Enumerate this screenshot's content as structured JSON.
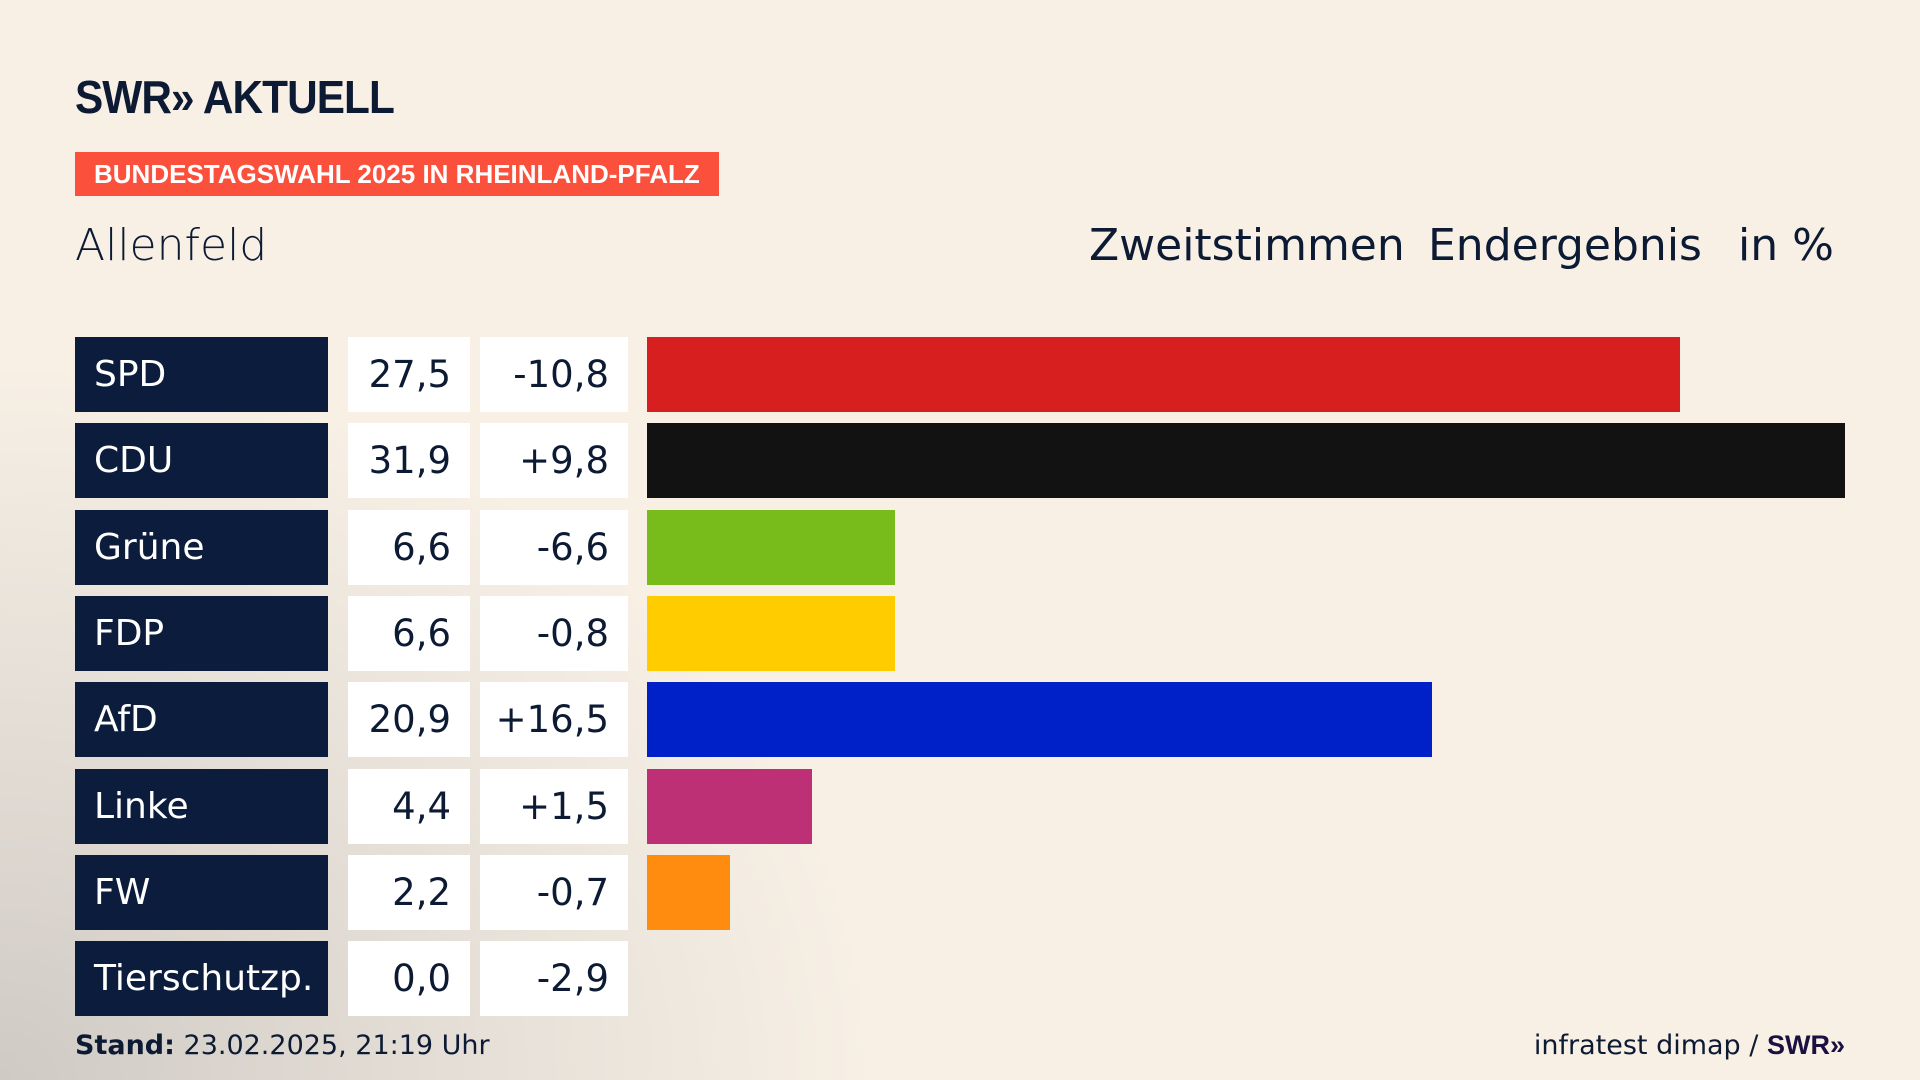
{
  "header": {
    "logo": "SWR» AKTUELL",
    "badge": "BUNDESTAGSWAHL 2025 IN RHEINLAND-PFALZ",
    "place": "Allenfeld",
    "vote_type": "Zweitstimmen",
    "status": "Endergebnis",
    "unit": "in %"
  },
  "footer": {
    "stand_label": "Stand:",
    "stand_value": "23.02.2025, 21:19 Uhr",
    "source": "infratest dimap /",
    "source_logo": "SWR»"
  },
  "chart_data": {
    "type": "bar",
    "title": "Zweitstimmen Endergebnis in %",
    "categories": [
      "SPD",
      "CDU",
      "Grüne",
      "FDP",
      "AfD",
      "Linke",
      "FW",
      "Tierschutzp."
    ],
    "values": [
      27.5,
      31.9,
      6.6,
      6.6,
      20.9,
      4.4,
      2.2,
      0.0
    ],
    "values_label": [
      "27,5",
      "31,9",
      "6,6",
      "6,6",
      "20,9",
      "4,4",
      "2,2",
      "0,0"
    ],
    "diff_label": [
      "-10,8",
      "+9,8",
      "-6,6",
      "-0,8",
      "+16,5",
      "+1,5",
      "-0,7",
      "-2,9"
    ],
    "colors": [
      "#d71f1f",
      "#121212",
      "#78bc1b",
      "#ffcc00",
      "#0021c8",
      "#bd3075",
      "#ff8c0e",
      "#888888"
    ],
    "xlim": [
      0,
      31.9
    ]
  }
}
